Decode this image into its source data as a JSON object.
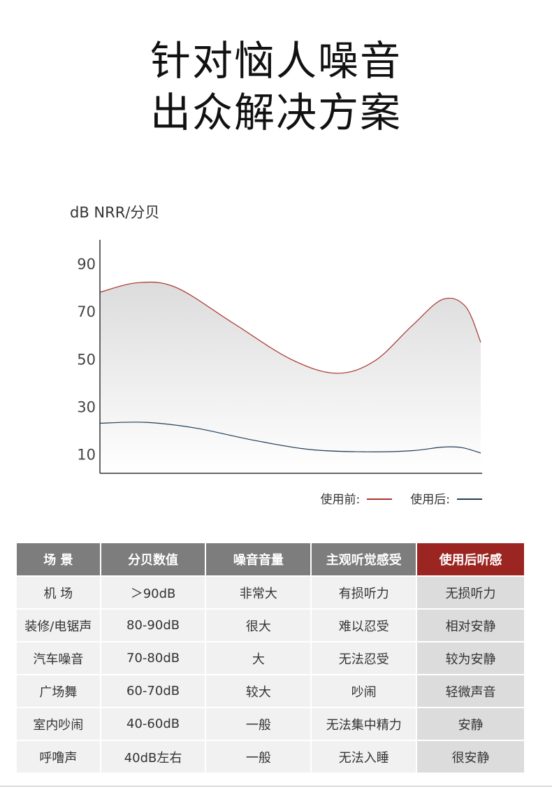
{
  "headline": [
    "针对恼人噪音",
    "出众解决方案"
  ],
  "unit_label": "dB  NRR/分贝",
  "chart_data": {
    "type": "area",
    "ylabel": "dB  NRR/分贝",
    "yticks": [
      90,
      70,
      50,
      30,
      10
    ],
    "ylim": [
      2,
      100
    ],
    "xlim": [
      0,
      1
    ],
    "legend_position": "bottom-right",
    "series": [
      {
        "name": "使用前:",
        "color": "#a8332d",
        "x": [
          0,
          0.1,
          0.2,
          0.35,
          0.5,
          0.62,
          0.72,
          0.82,
          0.9,
          0.96,
          1
        ],
        "y": [
          78,
          82,
          80,
          65,
          50,
          44,
          49,
          64,
          75,
          72,
          57
        ]
      },
      {
        "name": "使用后:",
        "color": "#1f3d58",
        "x": [
          0,
          0.12,
          0.25,
          0.4,
          0.55,
          0.7,
          0.82,
          0.9,
          0.95,
          1
        ],
        "y": [
          23,
          23.4,
          21,
          16,
          12,
          11,
          11.5,
          13,
          12.8,
          10.5
        ]
      }
    ]
  },
  "table": {
    "headers": [
      "场  景",
      "分贝数值",
      "噪音音量",
      "主观听觉感受",
      "使用后听感"
    ],
    "rows": [
      [
        "机  场",
        "＞90dB",
        "非常大",
        "有损听力",
        "无损听力"
      ],
      [
        "装修/电锯声",
        "80-90dB",
        "很大",
        "难以忍受",
        "相对安静"
      ],
      [
        "汽车噪音",
        "70-80dB",
        "大",
        "无法忍受",
        "较为安静"
      ],
      [
        "广场舞",
        "60-70dB",
        "较大",
        "吵闹",
        "轻微声音"
      ],
      [
        "室内吵闹",
        "40-60dB",
        "一般",
        "无法集中精力",
        "安静"
      ],
      [
        "呼噜声",
        "40dB左右",
        "一般",
        "无法入睡",
        "很安静"
      ]
    ]
  }
}
